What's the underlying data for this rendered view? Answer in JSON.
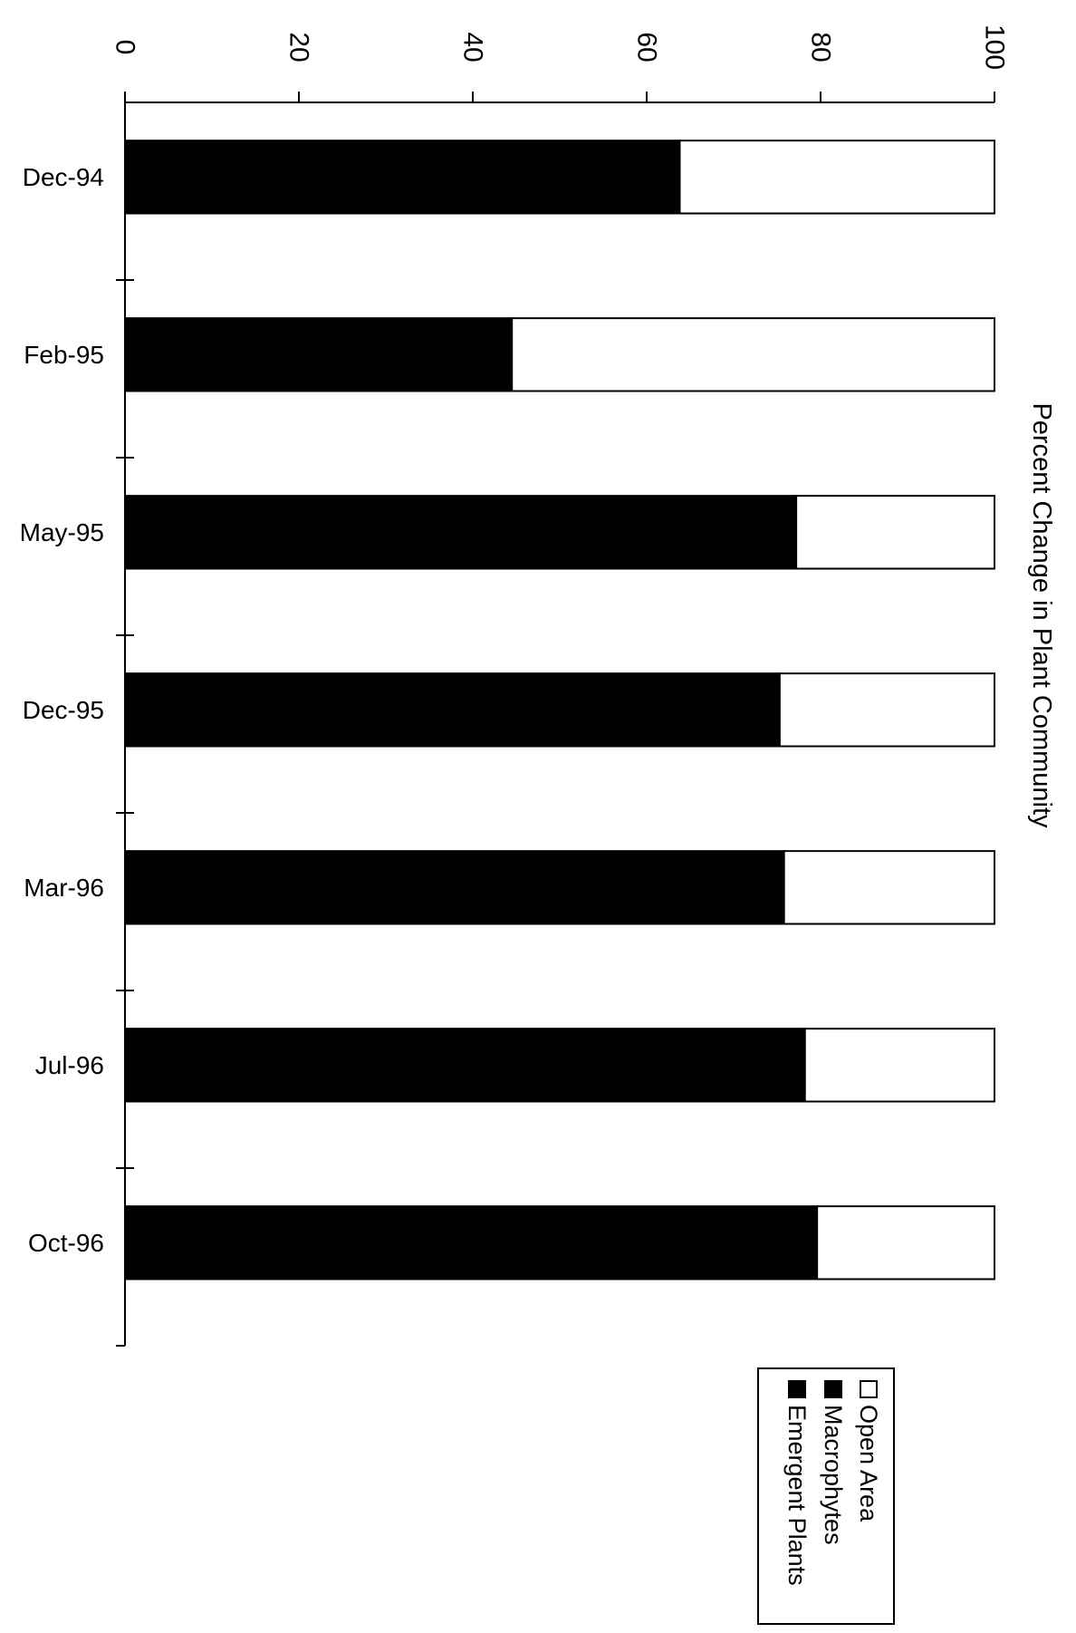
{
  "chart_data": {
    "type": "bar",
    "orientation": "horizontal",
    "stacked": true,
    "title": "",
    "categories": [
      "Dec-94",
      "Feb-95",
      "May-95",
      "Dec-95",
      "Mar-96",
      "Jul-96",
      "Oct-96"
    ],
    "series": [
      {
        "name": "Emergent Plants",
        "values": [
          0,
          0,
          0,
          0,
          0,
          0,
          0
        ]
      },
      {
        "name": "Macrophytes",
        "values": [
          63.8,
          44.5,
          77.2,
          75.3,
          75.8,
          78.2,
          79.6
        ]
      },
      {
        "name": "Open Area",
        "values": [
          36.2,
          55.5,
          22.8,
          24.7,
          24.2,
          21.8,
          20.4
        ]
      }
    ],
    "value_axis": {
      "label": "Percent Change in Plant Community",
      "range": [
        0,
        100
      ],
      "ticks": [
        "0",
        "20",
        "40",
        "60",
        "80",
        "100"
      ]
    },
    "legend": {
      "placement": "bottom-right",
      "entries": [
        "Open Area",
        "Macrophytes",
        "Emergent Plants"
      ]
    },
    "colors": {
      "Open Area": "#ffffff",
      "Macrophytes": "#000000",
      "Emergent Plants": "#000000"
    },
    "grid": false,
    "rotated": "90deg clockwise"
  }
}
